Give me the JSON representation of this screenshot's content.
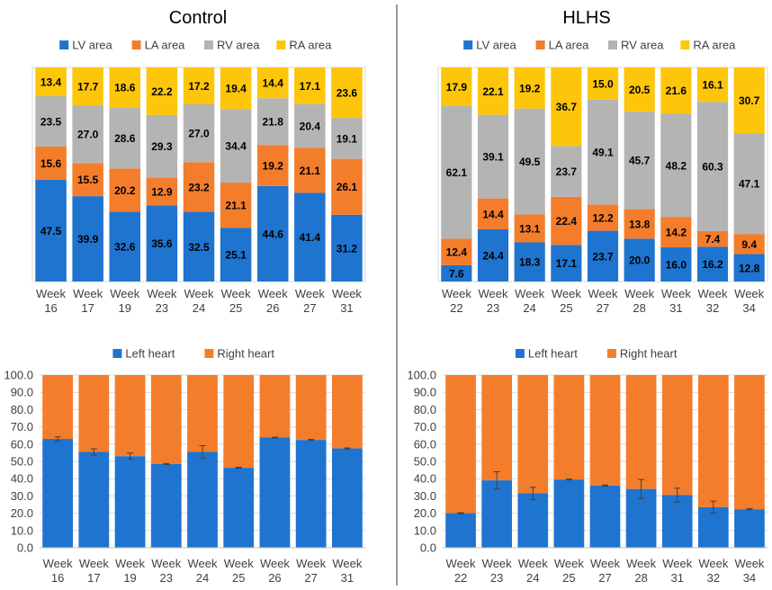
{
  "colors": {
    "lv": "#1f74d0",
    "la": "#f47d2c",
    "rv": "#b4b4b4",
    "ra": "#fec60a",
    "left_heart": "#1f74d0",
    "right_heart": "#f47d2c",
    "grid": "#d9d9d9",
    "axis": "#bfbfbf",
    "divider": "#333333",
    "text": "#404040"
  },
  "panel_titles": {
    "control": "Control",
    "hlhs": "HLHS"
  },
  "chart_data": [
    {
      "id": "control_chambers",
      "type": "bar",
      "stacked": true,
      "normalized": true,
      "title": "Control",
      "categories": [
        "Week 16",
        "Week 17",
        "Week 19",
        "Week 23",
        "Week 24",
        "Week 25",
        "Week 26",
        "Week 27",
        "Week 31"
      ],
      "series": [
        {
          "name": "LV area",
          "color_key": "lv",
          "values": [
            47.5,
            39.9,
            32.6,
            35.6,
            32.5,
            25.1,
            44.6,
            41.4,
            31.2
          ]
        },
        {
          "name": "LA area",
          "color_key": "la",
          "values": [
            15.6,
            15.5,
            20.2,
            12.9,
            23.2,
            21.1,
            19.2,
            21.1,
            26.1
          ]
        },
        {
          "name": "RV area",
          "color_key": "rv",
          "values": [
            23.5,
            27.0,
            28.6,
            29.3,
            27.0,
            34.4,
            21.8,
            20.4,
            19.1
          ]
        },
        {
          "name": "RA area",
          "color_key": "ra",
          "values": [
            13.4,
            17.7,
            18.6,
            22.2,
            17.2,
            19.4,
            14.4,
            17.1,
            23.6
          ]
        }
      ],
      "legend": "top"
    },
    {
      "id": "hlhs_chambers",
      "type": "bar",
      "stacked": true,
      "normalized": true,
      "title": "HLHS",
      "categories": [
        "Week 22",
        "Week 23",
        "Week 24",
        "Week 25",
        "Week 27",
        "Week 28",
        "Week 31",
        "Week 32",
        "Week 34"
      ],
      "series": [
        {
          "name": "LV area",
          "color_key": "lv",
          "values": [
            7.6,
            24.4,
            18.3,
            17.1,
            23.7,
            20.0,
            16.0,
            16.2,
            12.8
          ]
        },
        {
          "name": "LA area",
          "color_key": "la",
          "values": [
            12.4,
            14.4,
            13.1,
            22.4,
            12.2,
            13.8,
            14.2,
            7.4,
            9.4
          ]
        },
        {
          "name": "RV area",
          "color_key": "rv",
          "values": [
            62.1,
            39.1,
            49.5,
            23.7,
            49.1,
            45.7,
            48.2,
            60.3,
            47.1
          ]
        },
        {
          "name": "RA area",
          "color_key": "ra",
          "values": [
            17.9,
            22.1,
            19.2,
            36.7,
            15.0,
            20.5,
            21.6,
            16.1,
            30.7
          ]
        }
      ],
      "legend": "top"
    },
    {
      "id": "control_heart",
      "type": "bar",
      "stacked": true,
      "categories": [
        "Week 16",
        "Week 17",
        "Week 19",
        "Week 23",
        "Week 24",
        "Week 25",
        "Week 26",
        "Week 27",
        "Week 31"
      ],
      "series": [
        {
          "name": "Left heart",
          "color_key": "left_heart",
          "values": [
            63.0,
            55.5,
            53.0,
            48.5,
            55.5,
            46.3,
            63.8,
            62.4,
            57.5
          ],
          "error": [
            1.2,
            1.8,
            1.8,
            0.3,
            3.6,
            0.3,
            0.2,
            0.3,
            0.3
          ]
        },
        {
          "name": "Right heart",
          "color_key": "right_heart",
          "values": [
            37.0,
            44.5,
            47.0,
            51.5,
            44.5,
            53.7,
            36.2,
            37.6,
            42.5
          ]
        }
      ],
      "ylim": [
        0,
        100
      ],
      "yticks": [
        "0.0",
        "10.0",
        "20.0",
        "30.0",
        "40.0",
        "50.0",
        "60.0",
        "70.0",
        "80.0",
        "90.0",
        "100.0"
      ],
      "legend": "top"
    },
    {
      "id": "hlhs_heart",
      "type": "bar",
      "stacked": true,
      "categories": [
        "Week 22",
        "Week 23",
        "Week 24",
        "Week 25",
        "Week 27",
        "Week 28",
        "Week 31",
        "Week 32",
        "Week 34"
      ],
      "series": [
        {
          "name": "Left heart",
          "color_key": "left_heart",
          "values": [
            20.0,
            39.0,
            31.5,
            39.5,
            36.0,
            34.0,
            30.5,
            23.5,
            22.3
          ],
          "error": [
            0.3,
            5.0,
            3.5,
            0.3,
            0.3,
            5.5,
            4.0,
            3.5,
            0.3
          ]
        },
        {
          "name": "Right heart",
          "color_key": "right_heart",
          "values": [
            80.0,
            61.0,
            68.5,
            60.5,
            64.0,
            66.0,
            69.5,
            76.5,
            77.7
          ]
        }
      ],
      "ylim": [
        0,
        100
      ],
      "yticks": [
        "0.0",
        "10.0",
        "20.0",
        "30.0",
        "40.0",
        "50.0",
        "60.0",
        "70.0",
        "80.0",
        "90.0",
        "100.0"
      ],
      "legend": "top"
    }
  ]
}
